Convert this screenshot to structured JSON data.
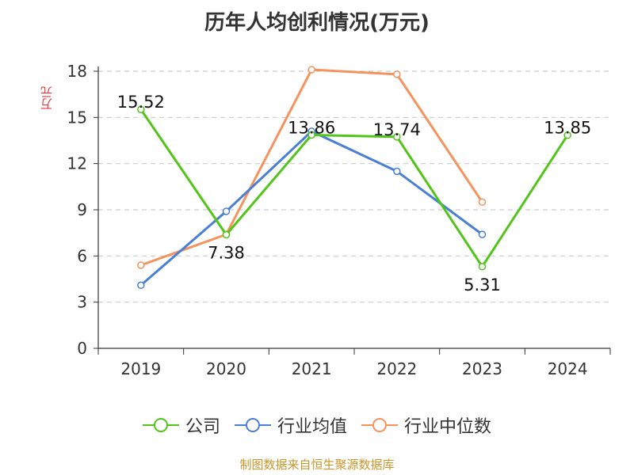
{
  "chart_data": {
    "type": "line",
    "title": "历年人均创利情况(万元)",
    "ylabel": "万元",
    "categories": [
      "2019",
      "2020",
      "2021",
      "2022",
      "2023",
      "2024"
    ],
    "ylim": [
      0,
      18
    ],
    "yticks": [
      0,
      3,
      6,
      9,
      12,
      15,
      18
    ],
    "grid": true,
    "legend_position": "bottom",
    "series": [
      {
        "name": "公司",
        "color": "#52c41a",
        "values": [
          15.52,
          7.38,
          13.86,
          13.74,
          5.31,
          13.85
        ],
        "labels": [
          "15.52",
          "7.38",
          "13.86",
          "13.74",
          "5.31",
          "13.85"
        ]
      },
      {
        "name": "行业均值",
        "color": "#4a7fd6",
        "values": [
          4.1,
          8.9,
          14.1,
          11.5,
          7.4,
          null
        ]
      },
      {
        "name": "行业中位数",
        "color": "#f5935e",
        "values": [
          5.4,
          7.4,
          18.1,
          17.8,
          9.5,
          null
        ]
      }
    ]
  },
  "source": "制图数据来自恒生聚源数据库"
}
